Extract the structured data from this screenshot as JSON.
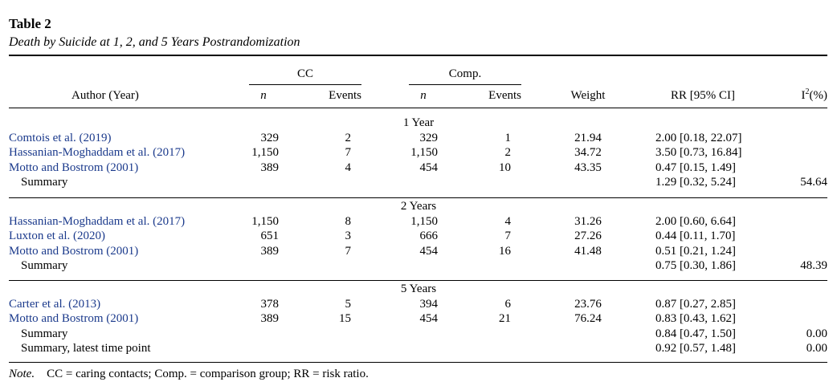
{
  "table": {
    "label": "Table 2",
    "caption": "Death by Suicide at 1, 2, and 5 Years Postrandomization",
    "group_headers": {
      "cc": "CC",
      "comp": "Comp."
    },
    "columns": {
      "author": "Author (Year)",
      "cc_n": "n",
      "cc_events": "Events",
      "comp_n": "n",
      "comp_events": "Events",
      "weight": "Weight",
      "rr": "RR [95% CI]",
      "i2_base": "I",
      "i2_sup": "2",
      "i2_rest": "(%)"
    },
    "sections": [
      {
        "heading": "1 Year",
        "rows": [
          {
            "author": "Comtois et al. (2019)",
            "link": true,
            "cc_n": "329",
            "cc_events": "2",
            "comp_n": "329",
            "comp_events": "1",
            "weight": "21.94",
            "rr": "2.00 [0.18, 22.07]",
            "i2": ""
          },
          {
            "author": "Hassanian-Moghaddam et al. (2017)",
            "link": true,
            "cc_n": "1,150",
            "cc_events": "7",
            "comp_n": "1,150",
            "comp_events": "2",
            "weight": "34.72",
            "rr": "3.50 [0.73, 16.84]",
            "i2": ""
          },
          {
            "author": "Motto and Bostrom (2001)",
            "link": true,
            "cc_n": "389",
            "cc_events": "4",
            "comp_n": "454",
            "comp_events": "10",
            "weight": "43.35",
            "rr": "0.47 [0.15, 1.49]",
            "i2": ""
          },
          {
            "author": "Summary",
            "link": false,
            "cc_n": "",
            "cc_events": "",
            "comp_n": "",
            "comp_events": "",
            "weight": "",
            "rr": "1.29 [0.32, 5.24]",
            "i2": "54.64"
          }
        ]
      },
      {
        "heading": "2 Years",
        "rows": [
          {
            "author": "Hassanian-Moghaddam et al. (2017)",
            "link": true,
            "cc_n": "1,150",
            "cc_events": "8",
            "comp_n": "1,150",
            "comp_events": "4",
            "weight": "31.26",
            "rr": "2.00 [0.60, 6.64]",
            "i2": ""
          },
          {
            "author": "Luxton et al. (2020)",
            "link": true,
            "cc_n": "651",
            "cc_events": "3",
            "comp_n": "666",
            "comp_events": "7",
            "weight": "27.26",
            "rr": "0.44 [0.11, 1.70]",
            "i2": ""
          },
          {
            "author": "Motto and Bostrom (2001)",
            "link": true,
            "cc_n": "389",
            "cc_events": "7",
            "comp_n": "454",
            "comp_events": "16",
            "weight": "41.48",
            "rr": "0.51 [0.21, 1.24]",
            "i2": ""
          },
          {
            "author": "Summary",
            "link": false,
            "cc_n": "",
            "cc_events": "",
            "comp_n": "",
            "comp_events": "",
            "weight": "",
            "rr": "0.75 [0.30, 1.86]",
            "i2": "48.39"
          }
        ]
      },
      {
        "heading": "5 Years",
        "rows": [
          {
            "author": "Carter et al. (2013)",
            "link": true,
            "cc_n": "378",
            "cc_events": "5",
            "comp_n": "394",
            "comp_events": "6",
            "weight": "23.76",
            "rr": "0.87 [0.27, 2.85]",
            "i2": ""
          },
          {
            "author": "Motto and Bostrom (2001)",
            "link": true,
            "cc_n": "389",
            "cc_events": "15",
            "comp_n": "454",
            "comp_events": "21",
            "weight": "76.24",
            "rr": "0.83 [0.43, 1.62]",
            "i2": ""
          },
          {
            "author": "Summary",
            "link": false,
            "cc_n": "",
            "cc_events": "",
            "comp_n": "",
            "comp_events": "",
            "weight": "",
            "rr": "0.84 [0.47, 1.50]",
            "i2": "0.00"
          },
          {
            "author": "Summary, latest time point",
            "link": false,
            "cc_n": "",
            "cc_events": "",
            "comp_n": "",
            "comp_events": "",
            "weight": "",
            "rr": "0.92 [0.57, 1.48]",
            "i2": "0.00"
          }
        ]
      }
    ],
    "note": {
      "label": "Note.",
      "text": "CC = caring contacts; Comp. = comparison group; RR = risk ratio."
    },
    "colors": {
      "link": "#1b3a8c",
      "text": "#000000"
    }
  }
}
